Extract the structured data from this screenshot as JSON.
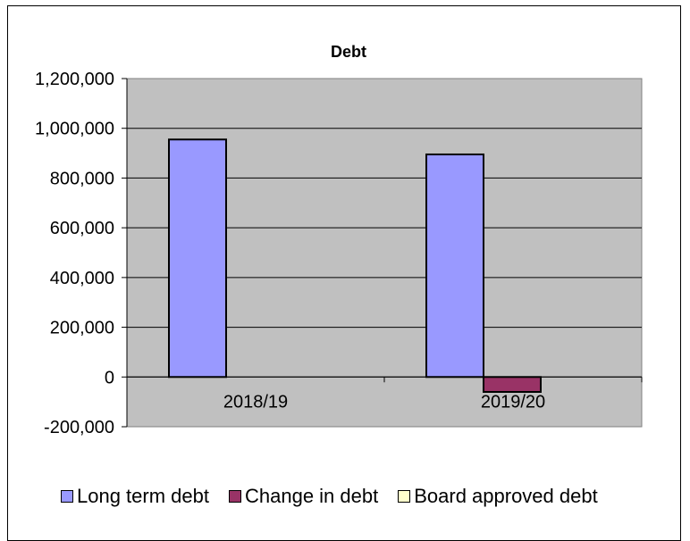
{
  "chart_data": {
    "type": "bar",
    "title": "Debt",
    "xlabel": "",
    "ylabel": "",
    "categories": [
      "2018/19",
      "2019/20"
    ],
    "series": [
      {
        "name": "Long term debt",
        "values": [
          955000,
          895000
        ],
        "color": "#9999ff"
      },
      {
        "name": "Change in debt",
        "values": [
          0,
          -60000
        ],
        "color": "#993366"
      },
      {
        "name": "Board approved debt",
        "values": [
          0,
          0
        ],
        "color": "#ffffcc"
      }
    ],
    "ylim": [
      -200000,
      1200000
    ],
    "yticks": [
      "1,200,000",
      "1,000,000",
      "800,000",
      "600,000",
      "400,000",
      "200,000",
      "0",
      "-200,000"
    ],
    "ytick_values": [
      1200000,
      1000000,
      800000,
      600000,
      400000,
      200000,
      0,
      -200000
    ],
    "plot_background": "#c0c0c0",
    "grid": true,
    "legend_position": "bottom"
  }
}
